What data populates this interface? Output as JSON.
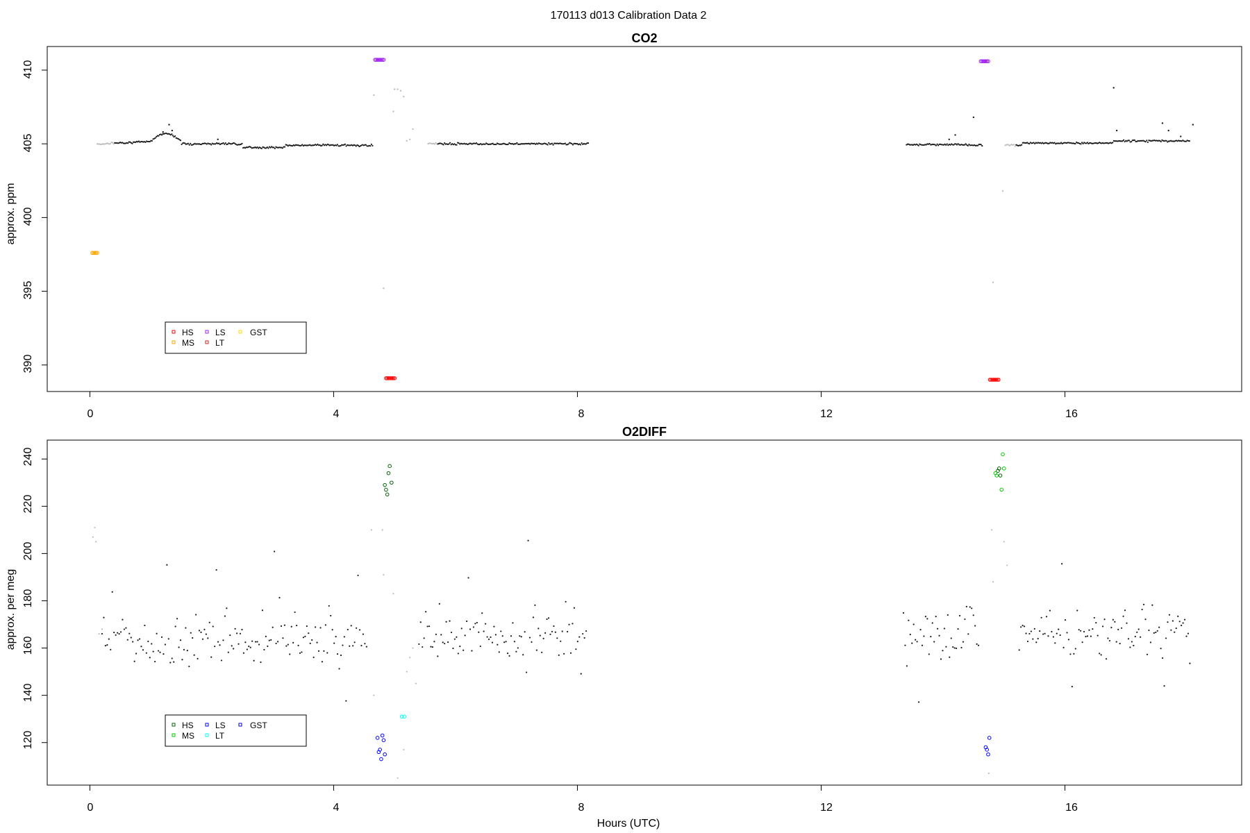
{
  "figure_title": "170113   d013   Calibration Data 2",
  "chart_data": [
    {
      "type": "scatter",
      "title": "CO2",
      "xlabel": "",
      "ylabel": "approx. ppm",
      "xlim": [
        -0.7,
        18.9
      ],
      "ylim": [
        388.2,
        411.6
      ],
      "xticks": [
        "0",
        "4",
        "8",
        "12",
        "16"
      ],
      "yticks": [
        "390",
        "395",
        "400",
        "405",
        "410"
      ],
      "legend": {
        "position": "bottom-left",
        "entries": [
          {
            "label": "HS",
            "color": "#ff0000"
          },
          {
            "label": "LS",
            "color": "#a020f0"
          },
          {
            "label": "GST",
            "color": "#ffd700"
          },
          {
            "label": "MS",
            "color": "#ffa500"
          },
          {
            "label": "LT",
            "color": "#cd2626"
          }
        ]
      },
      "series": [
        {
          "name": "HS",
          "color": "#ff0000",
          "x": [
            4.86,
            4.88,
            4.9,
            4.92,
            4.94,
            4.96,
            4.98,
            5.0,
            14.77,
            14.79,
            14.81,
            14.83,
            14.85,
            14.87,
            14.89,
            14.91
          ],
          "y": [
            389.1,
            389.1,
            389.1,
            389.1,
            389.1,
            389.1,
            389.1,
            389.1,
            389.0,
            389.0,
            389.0,
            389.0,
            389.0,
            389.0,
            389.0,
            389.0
          ]
        },
        {
          "name": "MS",
          "color": "#ffa500",
          "x": [
            0.04,
            0.06,
            0.08,
            0.1,
            0.12
          ],
          "y": [
            397.6,
            397.6,
            397.6,
            397.6,
            397.6
          ]
        },
        {
          "name": "LS",
          "color": "#a020f0",
          "x": [
            4.68,
            4.7,
            4.72,
            4.74,
            4.76,
            4.78,
            4.8,
            4.82,
            14.62,
            14.64,
            14.66,
            14.68,
            14.7,
            14.72,
            14.74
          ],
          "y": [
            410.7,
            410.7,
            410.7,
            410.7,
            410.7,
            410.7,
            410.7,
            410.7,
            410.6,
            410.6,
            410.6,
            410.6,
            410.6,
            410.6,
            410.6
          ]
        }
      ]
    },
    {
      "type": "scatter",
      "title": "O2DIFF",
      "xlabel": "Hours (UTC)",
      "ylabel": "approx. per meg",
      "xlim": [
        -0.7,
        18.9
      ],
      "ylim": [
        102,
        248
      ],
      "xticks": [
        "0",
        "4",
        "8",
        "12",
        "16"
      ],
      "yticks": [
        "120",
        "140",
        "160",
        "180",
        "200",
        "220",
        "240"
      ],
      "legend": {
        "position": "bottom-left",
        "entries": [
          {
            "label": "HS",
            "color": "#006400"
          },
          {
            "label": "LS",
            "color": "#0000ff"
          },
          {
            "label": "GST",
            "color": "#0000cd"
          },
          {
            "label": "MS",
            "color": "#00cd00"
          },
          {
            "label": "LT",
            "color": "#00ffff"
          }
        ]
      },
      "series": [
        {
          "name": "HS",
          "color": "#006400",
          "x": [
            4.84,
            4.86,
            4.88,
            4.9,
            4.92,
            4.95,
            14.9,
            14.92,
            14.94
          ],
          "y": [
            229,
            227,
            225,
            234,
            237,
            230,
            235,
            236,
            233
          ]
        },
        {
          "name": "MS",
          "color": "#00cd00",
          "x": [
            14.86,
            14.88,
            14.96,
            14.98,
            15.0
          ],
          "y": [
            234,
            233,
            227,
            242,
            236
          ]
        },
        {
          "name": "LS",
          "color": "#0000ff",
          "x": [
            4.72,
            4.74,
            4.76,
            4.78,
            4.8,
            4.82,
            14.7,
            14.72,
            14.74,
            14.76
          ],
          "y": [
            122,
            116,
            117,
            113,
            123,
            121,
            118,
            117,
            115,
            122
          ]
        },
        {
          "name": "GST",
          "color": "#0000cd",
          "x": [
            4.84
          ],
          "y": [
            115
          ]
        },
        {
          "name": "LT",
          "color": "#00ffff",
          "x": [
            5.12,
            5.16
          ],
          "y": [
            131,
            131
          ]
        }
      ]
    }
  ]
}
